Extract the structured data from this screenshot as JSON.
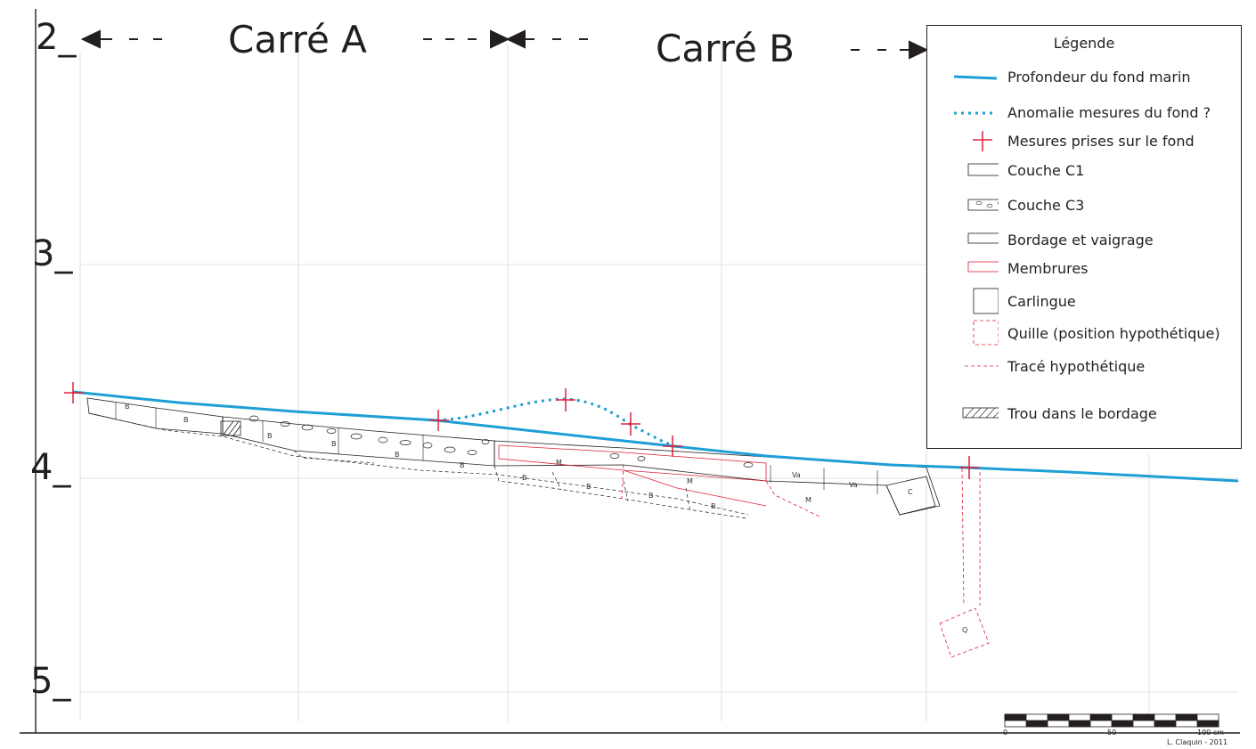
{
  "depth_labels": [
    "2_",
    "3_",
    "4_",
    "5_"
  ],
  "squares": {
    "a": "Carré A",
    "b": "Carré B"
  },
  "legend": {
    "title": "Légende",
    "items": [
      {
        "key": "seafloor",
        "label": "Profondeur du fond marin",
        "color": "#1e9fd6"
      },
      {
        "key": "anomaly",
        "label": "Anomalie mesures du fond ?",
        "color": "#1e9fd6"
      },
      {
        "key": "measure",
        "label": "Mesures prises sur le fond",
        "color": "#e0203a"
      },
      {
        "key": "c1",
        "label": "Couche C1",
        "color": "#231f20"
      },
      {
        "key": "c3",
        "label": "Couche C3",
        "color": "#231f20"
      },
      {
        "key": "bordage",
        "label": "Bordage et vaigrage",
        "color": "#231f20"
      },
      {
        "key": "membrures",
        "label": "Membrures",
        "color": "#e0203a"
      },
      {
        "key": "carlingue",
        "label": "Carlingue",
        "color": "#231f20"
      },
      {
        "key": "quille",
        "label": "Quille (position hypothétique)",
        "color": "#e0203a"
      },
      {
        "key": "trace",
        "label": "Tracé hypothétique",
        "color": "#e0203a"
      },
      {
        "key": "trou",
        "label": "Trou dans le bordage",
        "color": "#231f20"
      }
    ]
  },
  "piece_labels": {
    "b": "B",
    "m": "M",
    "va": "Va",
    "c": "C",
    "q": "Q"
  },
  "scale_bar": {
    "ticks": [
      "0",
      "50",
      "100 cm"
    ]
  },
  "credit": "L. Claquin - 2011"
}
